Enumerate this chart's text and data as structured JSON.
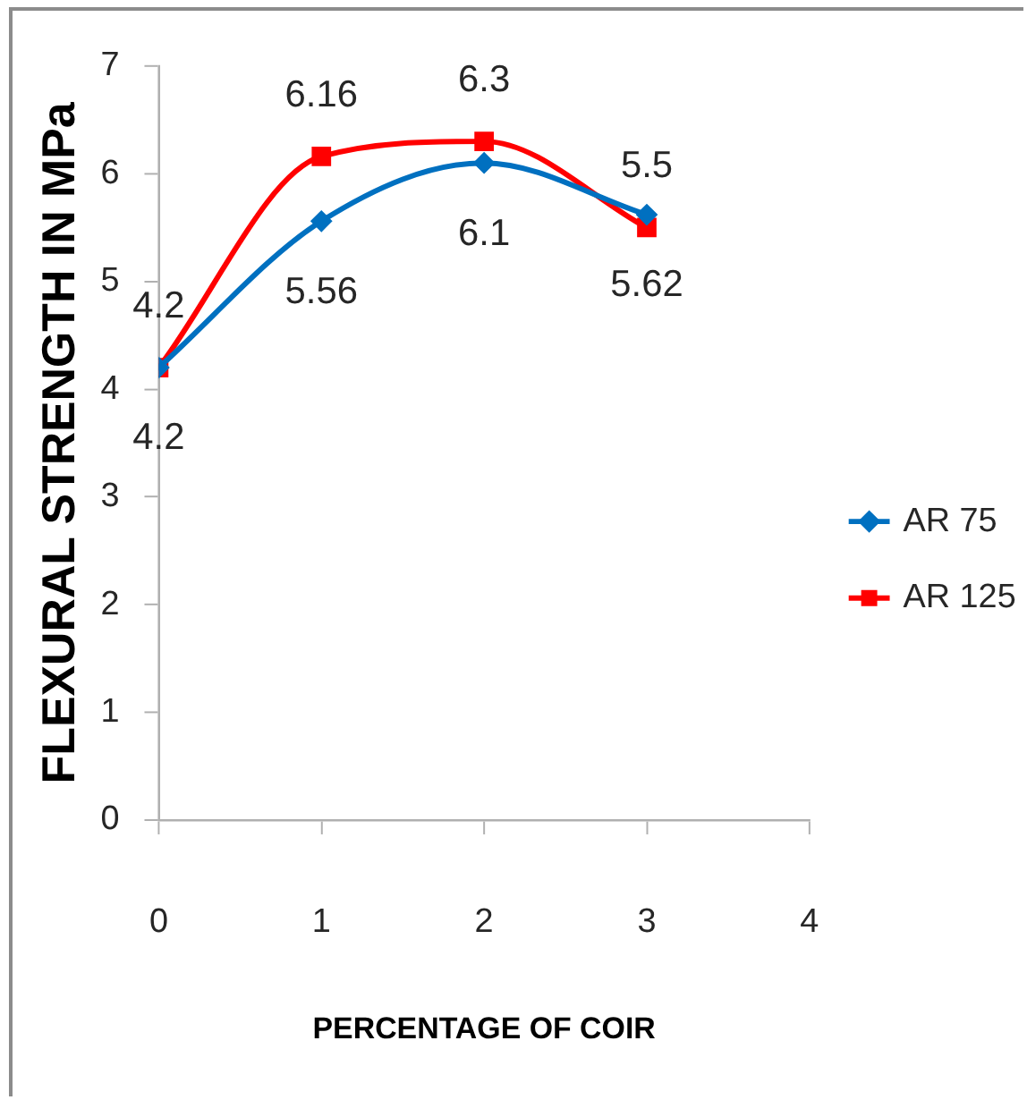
{
  "chart_data": {
    "type": "line",
    "xlabel": "PERCENTAGE OF COIR",
    "ylabel": "FLEXURAL STRENGTH IN MPa",
    "x": [
      0,
      1,
      2,
      3
    ],
    "series": [
      {
        "name": "AR 75",
        "color": "#0070c0",
        "marker": "diamond",
        "values": [
          4.2,
          5.56,
          6.1,
          5.62
        ]
      },
      {
        "name": "AR 125",
        "color": "#ff0000",
        "marker": "square",
        "values": [
          4.2,
          6.16,
          6.3,
          5.5
        ]
      }
    ],
    "xlim": [
      0,
      4
    ],
    "xticks": [
      0,
      1,
      2,
      3,
      4
    ],
    "ylim": [
      0,
      7
    ],
    "yticks": [
      0,
      1,
      2,
      3,
      4,
      5,
      6,
      7
    ],
    "legend": "right",
    "data_labels": true
  }
}
